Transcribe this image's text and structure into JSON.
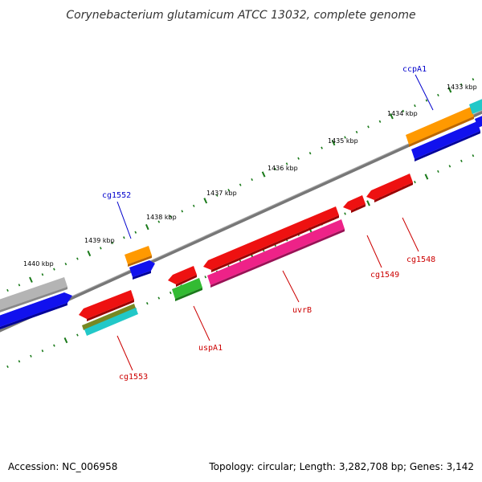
{
  "title": "Corynebacterium glutamicum ATCC 13032, complete genome",
  "footer": {
    "accession": "Accession: NC_006958",
    "summary": "Topology: circular; Length: 3,282,708 bp; Genes: 3,142"
  },
  "ticks": [
    "1433 kbp",
    "1434 kbp",
    "1435 kbp",
    "1436 kbp",
    "1437 kbp",
    "1438 kbp",
    "1439 kbp",
    "1440 kbp"
  ],
  "genes": [
    {
      "id": "ccpa1",
      "label": "ccpA1",
      "strand": "forward"
    },
    {
      "id": "cg1552",
      "label": "cg1552",
      "strand": "forward"
    },
    {
      "id": "cg1548",
      "label": "cg1548",
      "strand": "reverse"
    },
    {
      "id": "cg1549",
      "label": "cg1549",
      "strand": "reverse"
    },
    {
      "id": "uvrb",
      "label": "uvrB",
      "strand": "reverse"
    },
    {
      "id": "uspa1",
      "label": "uspA1",
      "strand": "reverse"
    },
    {
      "id": "cg1553",
      "label": "cg1553",
      "strand": "reverse"
    }
  ],
  "colors": {
    "backbone": "#777777",
    "tick": "#1a7a1a",
    "forward_label": "#0000cc",
    "reverse_label": "#cc0000",
    "red": "#ee1111",
    "blue": "#1111ee",
    "orange": "#ff9900",
    "gray": "#b4b4b4",
    "magenta": "#ee2288",
    "green": "#33bb33",
    "cyan": "#22c8c8",
    "olive": "#778822"
  }
}
